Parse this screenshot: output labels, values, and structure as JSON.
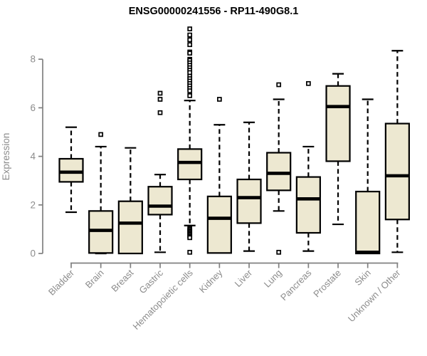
{
  "title": "ENSG00000241556 - RP11-490G8.1",
  "chart_data": {
    "type": "boxplot",
    "title": "ENSG00000241556 - RP11-490G8.1",
    "xlabel": "",
    "ylabel": "Expression",
    "ylim": [
      0,
      9.3
    ],
    "yticks": [
      0,
      2,
      4,
      6,
      8
    ],
    "grid": false,
    "legend": "none",
    "categories": [
      "Bladder",
      "Brain",
      "Breast",
      "Gastric",
      "Hematopoietic cells",
      "Kidney",
      "Liver",
      "Lung",
      "Pancreas",
      "Prostate",
      "Skin",
      "Unknown / Other"
    ],
    "series": [
      {
        "category": "Bladder",
        "whisker_low": 1.7,
        "q1": 2.95,
        "median": 3.35,
        "q3": 3.9,
        "whisker_high": 5.2,
        "outliers": []
      },
      {
        "category": "Brain",
        "whisker_low": 0.0,
        "q1": 0.02,
        "median": 0.95,
        "q3": 1.75,
        "whisker_high": 4.4,
        "outliers": [
          4.9
        ]
      },
      {
        "category": "Breast",
        "whisker_low": 0.0,
        "q1": 0.0,
        "median": 1.25,
        "q3": 2.15,
        "whisker_high": 4.35,
        "outliers": []
      },
      {
        "category": "Gastric",
        "whisker_low": 0.05,
        "q1": 1.6,
        "median": 1.95,
        "q3": 2.75,
        "whisker_high": 3.25,
        "outliers": [
          6.6,
          6.35,
          5.8
        ]
      },
      {
        "category": "Hematopoietic cells",
        "whisker_low": 1.15,
        "q1": 3.05,
        "median": 3.75,
        "q3": 4.3,
        "whisker_high": 6.3,
        "outliers": [
          9.25,
          9.0,
          8.8,
          8.6,
          8.3,
          8.25,
          8.0,
          7.95,
          7.85,
          7.75,
          7.65,
          7.55,
          7.45,
          7.3,
          7.2,
          7.1,
          7.0,
          6.9,
          6.8,
          6.7,
          6.5,
          1.05,
          1.0,
          0.95,
          0.9,
          0.85,
          0.8,
          0.75,
          0.7,
          0.65,
          0.05
        ]
      },
      {
        "category": "Kidney",
        "whisker_low": 0.02,
        "q1": 0.02,
        "median": 1.45,
        "q3": 2.35,
        "whisker_high": 5.3,
        "outliers": [
          6.35
        ]
      },
      {
        "category": "Liver",
        "whisker_low": 0.1,
        "q1": 1.25,
        "median": 2.3,
        "q3": 3.05,
        "whisker_high": 5.4,
        "outliers": []
      },
      {
        "category": "Lung",
        "whisker_low": 1.75,
        "q1": 2.6,
        "median": 3.3,
        "q3": 4.15,
        "whisker_high": 6.35,
        "outliers": [
          6.95,
          0.05
        ]
      },
      {
        "category": "Pancreas",
        "whisker_low": 0.1,
        "q1": 0.85,
        "median": 2.25,
        "q3": 3.15,
        "whisker_high": 4.4,
        "outliers": [
          7.0
        ]
      },
      {
        "category": "Prostate",
        "whisker_low": 1.2,
        "q1": 3.8,
        "median": 6.05,
        "q3": 6.9,
        "whisker_high": 7.4,
        "outliers": []
      },
      {
        "category": "Skin",
        "whisker_low": 0.0,
        "q1": 0.0,
        "median": 0.05,
        "q3": 2.55,
        "whisker_high": 6.35,
        "outliers": []
      },
      {
        "category": "Unknown / Other",
        "whisker_low": 0.05,
        "q1": 1.4,
        "median": 3.2,
        "q3": 5.35,
        "whisker_high": 8.35,
        "outliers": []
      }
    ],
    "colors": {
      "box_fill": "#EDE8D1",
      "box_border": "#000000",
      "median": "#000000",
      "whisker": "#000000",
      "outlier_stroke": "#000000",
      "outlier_fill": "#FFFFFF",
      "axis": "#808080",
      "tick_label": "#8C8C8C",
      "title": "#000000",
      "background": "#FFFFFF"
    }
  }
}
